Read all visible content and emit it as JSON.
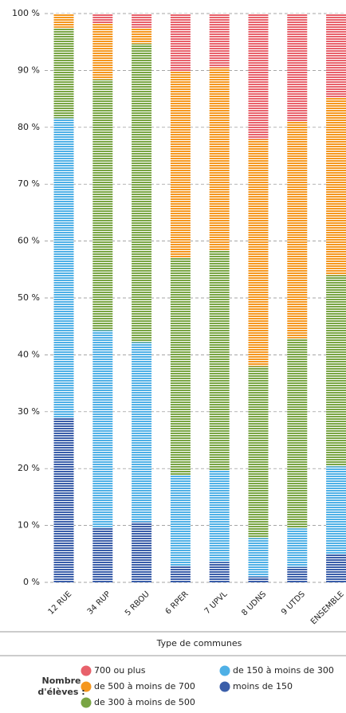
{
  "chart_data": {
    "type": "stacked_bar",
    "categories": [
      "12 RUE",
      "34 RUP",
      "5 RBOU",
      "6 RPER",
      "7 UPVL",
      "8 UDNS",
      "9 UTDS",
      "ENSEMBLE"
    ],
    "series": [
      {
        "name": "moins de 150",
        "color": "#3a5ea9",
        "values": [
          29,
          9.7,
          10.6,
          2.9,
          3.6,
          1,
          2.7,
          5
        ]
      },
      {
        "name": "de 150 à moins de 300",
        "color": "#4fb0e6",
        "values": [
          52.6,
          34.6,
          31.6,
          15.9,
          16.1,
          6.8,
          6.8,
          15.4
        ]
      },
      {
        "name": "de 300 à moins de 500",
        "color": "#79a544",
        "values": [
          15.9,
          44.1,
          52.5,
          38.3,
          38.6,
          30.2,
          33.4,
          33.6
        ]
      },
      {
        "name": "de 500 à moins de 700",
        "color": "#f5971f",
        "values": [
          2.5,
          9.8,
          2.8,
          32.7,
          32.2,
          39.9,
          38.2,
          31.3
        ]
      },
      {
        "name": "700 ou plus",
        "color": "#e8616b",
        "values": [
          0,
          1.8,
          2.5,
          10.2,
          9.5,
          22.1,
          18.9,
          14.7
        ]
      }
    ],
    "ylim": [
      0,
      100
    ],
    "yticks": [
      {
        "value": 0,
        "label": "0 %"
      },
      {
        "value": 10,
        "label": "10 %"
      },
      {
        "value": 20,
        "label": "20 %"
      },
      {
        "value": 30,
        "label": "30 %"
      },
      {
        "value": 40,
        "label": "40 %"
      },
      {
        "value": 50,
        "label": "50 %"
      },
      {
        "value": 60,
        "label": "60 %"
      },
      {
        "value": 70,
        "label": "70 %"
      },
      {
        "value": 80,
        "label": "80 %"
      },
      {
        "value": 90,
        "label": "90 %"
      },
      {
        "value": 100,
        "label": "100 %"
      }
    ],
    "grid": true,
    "xlabel": "Type de communes",
    "legend_title": "Nombre d'élèves :"
  }
}
